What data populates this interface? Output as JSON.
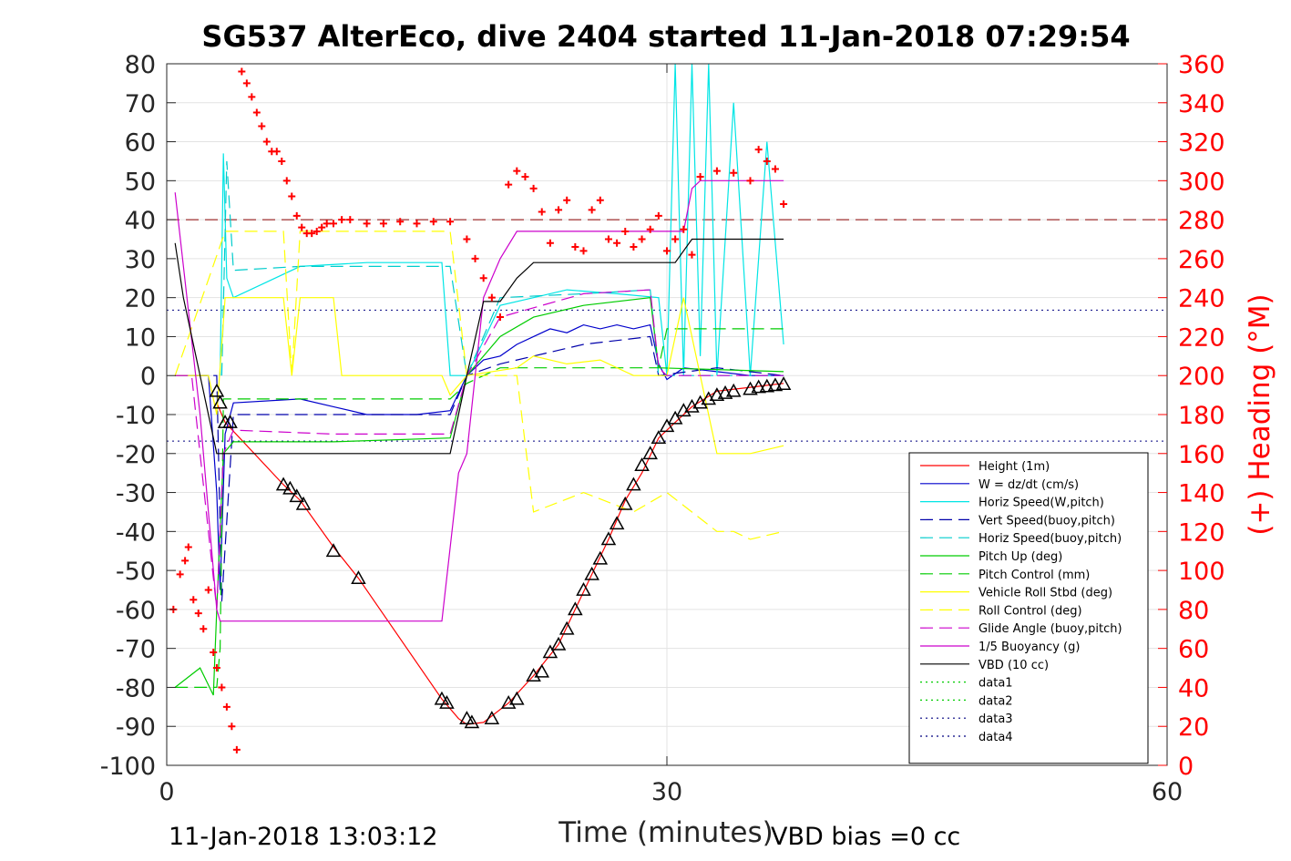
{
  "chart_data": {
    "type": "line",
    "title": "SG537 AlterEco, dive 2404 started 11-Jan-2018 07:29:54",
    "xlabel": "Time (minutes)",
    "ylabel": "",
    "y2label": "(+) Heading (°M)",
    "xlim": [
      0,
      60
    ],
    "ylim": [
      -100,
      80
    ],
    "y2lim": [
      0,
      360
    ],
    "x_ticks": [
      "0",
      "30",
      "60"
    ],
    "y_ticks": [
      "80",
      "70",
      "60",
      "50",
      "40",
      "30",
      "20",
      "10",
      "0",
      "-10",
      "-20",
      "-30",
      "-40",
      "-50",
      "-60",
      "-70",
      "-80",
      "-90",
      "-100"
    ],
    "y2_ticks": [
      "360",
      "340",
      "320",
      "300",
      "280",
      "260",
      "240",
      "220",
      "200",
      "180",
      "160",
      "140",
      "120",
      "100",
      "80",
      "60",
      "40",
      "20",
      "0"
    ],
    "grid": true,
    "legend_position": "bottom-right",
    "footer_left": "11-Jan-2018 13:03:12",
    "footer_right": "VBD bias =0 cc",
    "reference_lines": [
      {
        "y": 40,
        "color": "#8b0000",
        "style": "dashed"
      },
      {
        "y": 16.8,
        "color": "#000080",
        "style": "dotted"
      },
      {
        "y": -16.8,
        "color": "#000080",
        "style": "dotted"
      }
    ],
    "series": [
      {
        "name": "Height (1m)",
        "color": "#ff0000",
        "style": "solid",
        "x": [
          3.0,
          3.5,
          7.0,
          8.0,
          10.0,
          11.5,
          16.5,
          17.5,
          18.0,
          19.0,
          20.5,
          22.0,
          23.5,
          24.5,
          25.5,
          26.5,
          27.5,
          28.5,
          29.5,
          30.5,
          31.5,
          33.0,
          35.0,
          36.0,
          37.0
        ],
        "y": [
          -7.0,
          -12.0,
          -28.0,
          -32.0,
          -44.0,
          -52.0,
          -83.0,
          -88.0,
          -89.5,
          -89.0,
          -84.0,
          -77.0,
          -69.0,
          -60.0,
          -51.0,
          -42.0,
          -32.0,
          -25.0,
          -16.0,
          -12.0,
          -8.0,
          -4.0,
          -3.0,
          -2.5,
          -2.0
        ]
      },
      {
        "name": "W = dz/dt (cm/s)",
        "color": "#0000cc",
        "style": "solid",
        "x": [
          0.5,
          2.5,
          3.0,
          3.2,
          3.5,
          4.0,
          8.0,
          10.0,
          12.0,
          15.0,
          17.0,
          18.0,
          19.0,
          20.0,
          21.0,
          22.0,
          23.0,
          24.0,
          25.0,
          26.0,
          27.0,
          28.0,
          29.0,
          29.5,
          30.0,
          31.0,
          33.0,
          35.0,
          37.0
        ],
        "y": [
          0,
          0,
          -30,
          -55,
          -15,
          -7,
          -6,
          -8,
          -10,
          -10,
          -9,
          0,
          4,
          5,
          8,
          10,
          12,
          11,
          13,
          12,
          13,
          12,
          13,
          3,
          -1,
          2,
          1,
          0,
          0
        ]
      },
      {
        "name": "Horiz Speed(W,pitch)",
        "color": "#00e5e5",
        "style": "solid",
        "x": [
          3.2,
          3.4,
          3.6,
          4.0,
          6.0,
          8.0,
          12.0,
          16.5,
          17.0,
          18.0,
          20.0,
          22.0,
          24.0,
          27.0,
          29.5,
          30.0,
          30.5,
          31.0,
          31.5,
          32.0,
          32.5,
          33.0,
          34.0,
          35.0,
          36.0,
          37.0
        ],
        "y": [
          0,
          57,
          25,
          20,
          24,
          28,
          29,
          29,
          0,
          0,
          18,
          20,
          22,
          21,
          20,
          0,
          80,
          0,
          80,
          5,
          80,
          0,
          70,
          0,
          60,
          8
        ]
      },
      {
        "name": "Vert Speed(buoy,pitch)",
        "color": "#0000aa",
        "style": "dashed",
        "x": [
          0.5,
          3.0,
          3.3,
          4.0,
          10.0,
          17.0,
          18.0,
          20.0,
          25.0,
          29.0,
          29.5,
          33.0,
          37.0
        ],
        "y": [
          0,
          0,
          -58,
          -10,
          -10,
          -10,
          0,
          3,
          8,
          10,
          0,
          2,
          0
        ]
      },
      {
        "name": "Horiz Speed(buoy,pitch)",
        "color": "#00cccc",
        "style": "dashed",
        "x": [
          3.3,
          3.6,
          4.0,
          8.0,
          17.0,
          18.0,
          20.0,
          25.0,
          29.0,
          29.5,
          37.0
        ],
        "y": [
          0,
          55,
          27,
          28,
          28,
          0,
          20,
          21,
          22,
          0,
          0
        ]
      },
      {
        "name": "Pitch Up (deg)",
        "color": "#00cc00",
        "style": "solid",
        "x": [
          0.5,
          2.0,
          2.8,
          3.0,
          3.4,
          4.0,
          10.0,
          17.0,
          18.0,
          20.0,
          22.0,
          25.0,
          29.0,
          29.5,
          37.0
        ],
        "y": [
          -80,
          -75,
          -82,
          -60,
          -20,
          -17,
          -17,
          -16,
          0,
          10,
          15,
          18,
          20,
          2,
          1
        ]
      },
      {
        "name": "Pitch Control (mm)",
        "color": "#00cc00",
        "style": "dashed",
        "x": [
          0.5,
          3.0,
          3.2,
          3.4,
          17.0,
          18.0,
          20.0,
          29.5,
          30.0,
          37.0
        ],
        "y": [
          -80,
          -80,
          -70,
          -6,
          -6,
          -2,
          2,
          2,
          12,
          12
        ]
      },
      {
        "name": "Vehicle Roll Stbd (deg)",
        "color": "#ffff00",
        "style": "solid",
        "x": [
          0.5,
          2.5,
          3.0,
          3.5,
          7.0,
          7.5,
          8.0,
          10.0,
          10.5,
          16.5,
          17.0,
          18.0,
          21.0,
          22.0,
          24.0,
          26.0,
          28.0,
          30.0,
          31.0,
          33.0,
          35.0,
          37.0
        ],
        "y": [
          0,
          0,
          -10,
          20,
          20,
          0,
          20,
          20,
          0,
          0,
          -5,
          0,
          2,
          5,
          3,
          4,
          0,
          0,
          20,
          -20,
          -20,
          -18
        ]
      },
      {
        "name": "Roll Control (deg)",
        "color": "#ffff00",
        "style": "dashed",
        "x": [
          0.5,
          3.5,
          7.0,
          7.5,
          8.0,
          17.0,
          18.0,
          21.0,
          22.0,
          25.0,
          28.0,
          30.0,
          33.0,
          34.0,
          35.0,
          37.0
        ],
        "y": [
          0,
          37,
          37,
          0,
          37,
          37,
          0,
          0,
          -35,
          -30,
          -35,
          -30,
          -40,
          -40,
          -42,
          -40
        ]
      },
      {
        "name": "Glide Angle (buoy,pitch)",
        "color": "#cc00cc",
        "style": "dashed",
        "x": [
          0.5,
          1.5,
          3.0,
          3.4,
          4.0,
          10.0,
          17.0,
          18.0,
          20.0,
          25.0,
          29.0,
          29.5,
          30.0,
          37.0
        ],
        "y": [
          0,
          0,
          -60,
          -20,
          -14,
          -15,
          -15,
          0,
          15,
          21,
          22,
          2,
          0,
          0
        ]
      },
      {
        "name": "1/5 Buoyancy (g)",
        "color": "#cc00cc",
        "style": "solid",
        "x": [
          0.5,
          2.0,
          3.0,
          3.2,
          16.5,
          17.5,
          18.0,
          19.0,
          20.0,
          21.0,
          29.0,
          31.0,
          31.5,
          32.0,
          37.0
        ],
        "y": [
          47,
          -10,
          -60,
          -63,
          -63,
          -25,
          -20,
          20,
          30,
          37,
          37,
          37,
          48,
          50,
          50
        ]
      },
      {
        "name": "VBD (10 cc)",
        "color": "#000000",
        "style": "solid",
        "x": [
          0.5,
          1.0,
          3.0,
          3.2,
          17.0,
          18.0,
          19.0,
          20.0,
          21.0,
          22.0,
          30.5,
          31.5,
          37.0
        ],
        "y": [
          34,
          20,
          -20,
          -20,
          -20,
          0,
          19,
          19,
          25,
          29,
          29,
          35,
          35
        ]
      },
      {
        "name": "data1",
        "color": "#00cc00",
        "style": "dotted",
        "x": [],
        "y": []
      },
      {
        "name": "data2",
        "color": "#00cc00",
        "style": "dotted",
        "x": [],
        "y": []
      },
      {
        "name": "data3",
        "color": "#000080",
        "style": "dotted",
        "x": [],
        "y": []
      },
      {
        "name": "data4",
        "color": "#000080",
        "style": "dotted",
        "x": [],
        "y": []
      }
    ],
    "heading_markers": {
      "color": "#ff0000",
      "axis": "right",
      "x": [
        0.4,
        0.8,
        1.1,
        1.3,
        1.6,
        1.9,
        2.2,
        2.5,
        2.8,
        3.0,
        3.3,
        3.6,
        3.9,
        4.2,
        4.5,
        4.8,
        5.1,
        5.4,
        5.7,
        6.0,
        6.3,
        6.6,
        6.9,
        7.2,
        7.5,
        7.8,
        8.1,
        8.4,
        8.7,
        9.0,
        9.3,
        9.6,
        10.0,
        10.5,
        11.0,
        12.0,
        13.0,
        14.0,
        15.0,
        16.0,
        17.0,
        18.0,
        18.5,
        19.0,
        19.5,
        20.0,
        20.5,
        21.0,
        21.5,
        22.0,
        22.5,
        23.0,
        23.5,
        24.0,
        24.5,
        25.0,
        25.5,
        26.0,
        26.5,
        27.0,
        27.5,
        28.0,
        28.5,
        29.0,
        29.5,
        30.0,
        30.5,
        31.0,
        31.5,
        32.0,
        33.0,
        34.0,
        35.0,
        35.5,
        36.0,
        36.5,
        37.0
      ],
      "y": [
        80,
        98,
        105,
        112,
        85,
        78,
        70,
        90,
        58,
        50,
        40,
        30,
        20,
        8,
        356,
        350,
        343,
        335,
        328,
        320,
        315,
        315,
        310,
        300,
        292,
        282,
        276,
        273,
        273,
        274,
        276,
        278,
        278,
        280,
        280,
        278,
        278,
        279,
        278,
        279,
        279,
        270,
        260,
        250,
        240,
        230,
        298,
        305,
        302,
        296,
        284,
        268,
        285,
        290,
        266,
        264,
        285,
        290,
        270,
        268,
        274,
        266,
        270,
        275,
        282,
        264,
        270,
        275,
        262,
        302,
        305,
        304,
        300,
        316,
        310,
        306,
        288
      ]
    },
    "triangle_markers": {
      "color": "#000000",
      "x": [
        3.0,
        3.2,
        3.5,
        3.8,
        7.0,
        7.4,
        7.8,
        8.2,
        10.0,
        11.5,
        16.5,
        16.8,
        18.0,
        18.3,
        19.5,
        20.5,
        21.0,
        22.0,
        22.5,
        23.0,
        23.5,
        24.0,
        24.5,
        25.0,
        25.5,
        26.0,
        26.5,
        27.0,
        27.5,
        28.0,
        28.5,
        29.0,
        29.5,
        30.0,
        30.5,
        31.0,
        31.5,
        32.0,
        32.5,
        33.0,
        33.5,
        34.0,
        35.0,
        35.5,
        36.0,
        36.5,
        37.0
      ],
      "y": [
        -4.0,
        -7.0,
        -12.0,
        -12.0,
        -28.0,
        -29.0,
        -31.0,
        -33.0,
        -45.0,
        -52.0,
        -83.0,
        -84.0,
        -88.0,
        -89.0,
        -88.0,
        -84.0,
        -83.0,
        -77.0,
        -76.0,
        -71.0,
        -69.0,
        -65.0,
        -60.0,
        -55.0,
        -51.0,
        -47.0,
        -42.0,
        -38.0,
        -33.0,
        -28.0,
        -23.0,
        -20.0,
        -16.0,
        -13.0,
        -11.0,
        -9.0,
        -8.0,
        -7.0,
        -6.0,
        -5.0,
        -4.5,
        -4.0,
        -3.5,
        -3.0,
        -2.8,
        -2.5,
        -2.2
      ]
    }
  }
}
